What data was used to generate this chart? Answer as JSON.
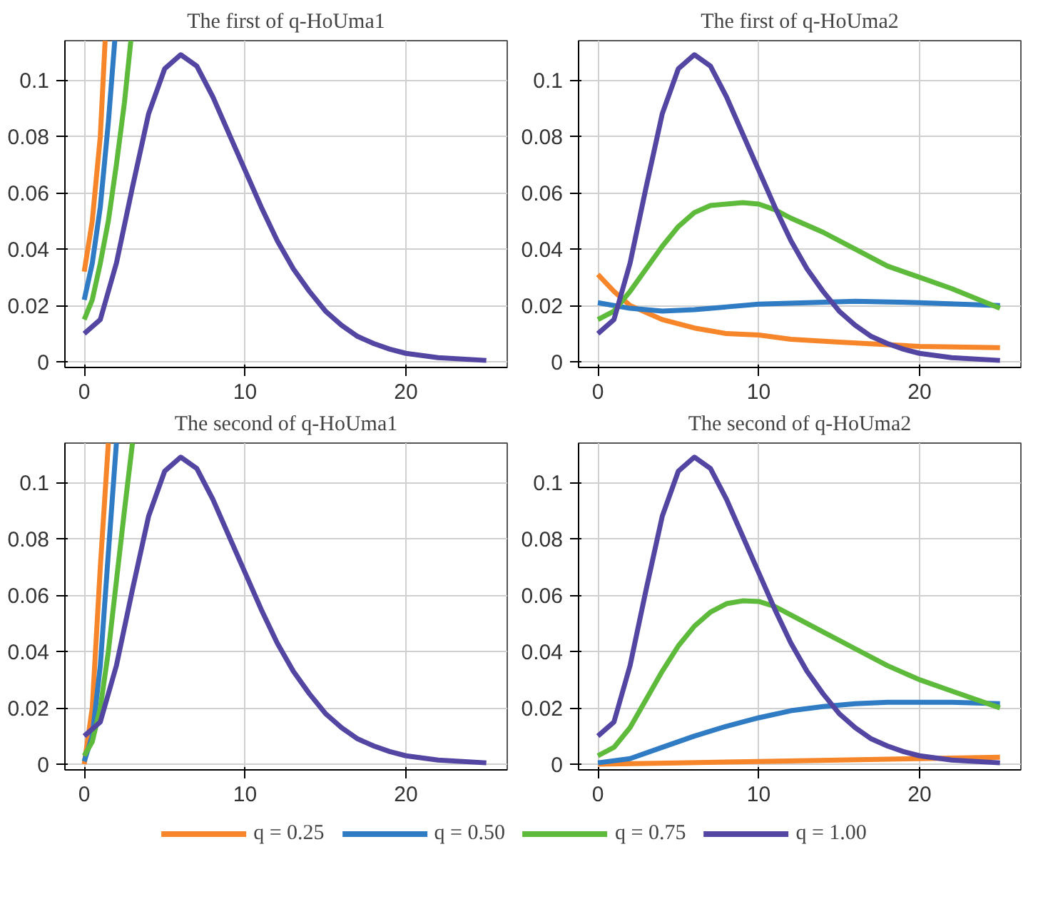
{
  "chart_data": [
    {
      "type": "line",
      "title": "The first of q-HoUma1",
      "xlim": [
        -1.2,
        26.3
      ],
      "ylim": [
        -0.002,
        0.114
      ],
      "xticks": [
        0,
        10,
        20
      ],
      "yticks": [
        0,
        {
          "value": 0.02,
          "label": "0.02"
        },
        {
          "value": 0.04,
          "label": "0.04"
        },
        {
          "value": 0.06,
          "label": "0.06"
        },
        {
          "value": 0.08,
          "label": "0.08"
        },
        0.1
      ],
      "grid": true,
      "series": [
        {
          "color": "#f7862a",
          "x": [
            0,
            0.5,
            1,
            1.3
          ],
          "values": [
            0.032,
            0.05,
            0.08,
            0.114
          ]
        },
        {
          "color": "#2f7bc4",
          "x": [
            0,
            0.5,
            1,
            1.5,
            1.9
          ],
          "values": [
            0.022,
            0.035,
            0.055,
            0.085,
            0.114
          ]
        },
        {
          "color": "#5dba3b",
          "x": [
            0,
            0.5,
            1,
            1.5,
            2,
            2.5,
            2.9
          ],
          "values": [
            0.015,
            0.022,
            0.035,
            0.05,
            0.07,
            0.092,
            0.114
          ]
        },
        {
          "color": "#5346a3",
          "x": [
            0,
            1,
            2,
            3,
            4,
            5,
            6,
            7,
            8,
            9,
            10,
            11,
            12,
            13,
            14,
            15,
            16,
            17,
            18,
            19,
            20,
            22,
            25
          ],
          "values": [
            0.01,
            0.015,
            0.035,
            0.062,
            0.088,
            0.104,
            0.109,
            0.105,
            0.094,
            0.081,
            0.068,
            0.055,
            0.043,
            0.033,
            0.025,
            0.018,
            0.013,
            0.009,
            0.0065,
            0.0045,
            0.003,
            0.0015,
            0.0005
          ]
        }
      ]
    },
    {
      "type": "line",
      "title": "The first of q-HoUma2",
      "xlim": [
        -1.2,
        26.3
      ],
      "ylim": [
        -0.002,
        0.114
      ],
      "xticks": [
        0,
        10,
        20
      ],
      "yticks": [
        0,
        {
          "value": 0.02,
          "label": "0.02"
        },
        {
          "value": 0.04,
          "label": "0.04"
        },
        {
          "value": 0.06,
          "label": "0.06"
        },
        {
          "value": 0.08,
          "label": "0.08"
        },
        0.1
      ],
      "grid": true,
      "series": [
        {
          "color": "#f7862a",
          "x": [
            0,
            1,
            2,
            4,
            6,
            8,
            10,
            12,
            15,
            20,
            25
          ],
          "values": [
            0.031,
            0.025,
            0.02,
            0.015,
            0.012,
            0.01,
            0.0095,
            0.008,
            0.007,
            0.0055,
            0.005
          ]
        },
        {
          "color": "#2f7bc4",
          "x": [
            0,
            2,
            4,
            6,
            8,
            10,
            13,
            16,
            20,
            25
          ],
          "values": [
            0.021,
            0.019,
            0.018,
            0.0185,
            0.0195,
            0.0205,
            0.021,
            0.0215,
            0.021,
            0.02
          ]
        },
        {
          "color": "#5dba3b",
          "x": [
            0,
            1,
            2,
            3,
            4,
            5,
            6,
            7,
            8,
            9,
            10,
            11,
            12,
            14,
            16,
            18,
            20,
            22,
            25
          ],
          "values": [
            0.015,
            0.018,
            0.025,
            0.033,
            0.041,
            0.048,
            0.053,
            0.0555,
            0.056,
            0.0565,
            0.056,
            0.054,
            0.051,
            0.046,
            0.04,
            0.034,
            0.03,
            0.026,
            0.019
          ]
        },
        {
          "color": "#5346a3",
          "x": [
            0,
            1,
            2,
            3,
            4,
            5,
            6,
            7,
            8,
            9,
            10,
            11,
            12,
            13,
            14,
            15,
            16,
            17,
            18,
            19,
            20,
            22,
            25
          ],
          "values": [
            0.01,
            0.015,
            0.035,
            0.062,
            0.088,
            0.104,
            0.109,
            0.105,
            0.094,
            0.081,
            0.068,
            0.055,
            0.043,
            0.033,
            0.025,
            0.018,
            0.013,
            0.009,
            0.0065,
            0.0045,
            0.003,
            0.0015,
            0.0005
          ]
        }
      ]
    },
    {
      "type": "line",
      "title": "The second of q-HoUma1",
      "xlim": [
        -1.2,
        26.3
      ],
      "ylim": [
        -0.002,
        0.114
      ],
      "xticks": [
        0,
        10,
        20
      ],
      "yticks": [
        0,
        {
          "value": 0.02,
          "label": "0.02"
        },
        {
          "value": 0.04,
          "label": "0.04"
        },
        {
          "value": 0.06,
          "label": "0.06"
        },
        {
          "value": 0.08,
          "label": "0.08"
        },
        0.1
      ],
      "grid": true,
      "series": [
        {
          "color": "#f7862a",
          "x": [
            0,
            0.5,
            1,
            1.5
          ],
          "values": [
            0,
            0.02,
            0.07,
            0.114
          ]
        },
        {
          "color": "#2f7bc4",
          "x": [
            0,
            0.5,
            1,
            1.5,
            2
          ],
          "values": [
            0.001,
            0.01,
            0.035,
            0.075,
            0.114
          ]
        },
        {
          "color": "#5dba3b",
          "x": [
            0,
            0.5,
            1,
            1.5,
            2,
            2.5,
            3
          ],
          "values": [
            0.003,
            0.008,
            0.02,
            0.04,
            0.065,
            0.09,
            0.114
          ]
        },
        {
          "color": "#5346a3",
          "x": [
            0,
            1,
            2,
            3,
            4,
            5,
            6,
            7,
            8,
            9,
            10,
            11,
            12,
            13,
            14,
            15,
            16,
            17,
            18,
            19,
            20,
            22,
            25
          ],
          "values": [
            0.01,
            0.015,
            0.035,
            0.062,
            0.088,
            0.104,
            0.109,
            0.105,
            0.094,
            0.081,
            0.068,
            0.055,
            0.043,
            0.033,
            0.025,
            0.018,
            0.013,
            0.009,
            0.0065,
            0.0045,
            0.003,
            0.0015,
            0.0005
          ]
        }
      ]
    },
    {
      "type": "line",
      "title": "The second of q-HoUma2",
      "xlim": [
        -1.2,
        26.3
      ],
      "ylim": [
        -0.002,
        0.114
      ],
      "xticks": [
        0,
        10,
        20
      ],
      "yticks": [
        0,
        {
          "value": 0.02,
          "label": "0.02"
        },
        {
          "value": 0.04,
          "label": "0.04"
        },
        {
          "value": 0.06,
          "label": "0.06"
        },
        {
          "value": 0.08,
          "label": "0.08"
        },
        0.1
      ],
      "grid": true,
      "legend": "bottom",
      "series": [
        {
          "name": "q = 0.25",
          "color": "#f7862a",
          "x": [
            0,
            5,
            10,
            15,
            20,
            25
          ],
          "values": [
            0,
            0.0005,
            0.001,
            0.0015,
            0.002,
            0.0025
          ]
        },
        {
          "name": "q = 0.50",
          "color": "#2f7bc4",
          "x": [
            0,
            2,
            4,
            6,
            8,
            10,
            12,
            14,
            16,
            18,
            20,
            22,
            25
          ],
          "values": [
            0.0005,
            0.002,
            0.006,
            0.01,
            0.0135,
            0.0165,
            0.019,
            0.0205,
            0.0215,
            0.022,
            0.022,
            0.022,
            0.0215
          ]
        },
        {
          "name": "q = 0.75",
          "color": "#5dba3b",
          "x": [
            0,
            1,
            2,
            3,
            4,
            5,
            6,
            7,
            8,
            9,
            10,
            11,
            12,
            14,
            16,
            18,
            20,
            22,
            25
          ],
          "values": [
            0.003,
            0.006,
            0.013,
            0.023,
            0.033,
            0.042,
            0.049,
            0.054,
            0.057,
            0.058,
            0.0578,
            0.056,
            0.053,
            0.047,
            0.041,
            0.035,
            0.03,
            0.026,
            0.02
          ]
        },
        {
          "name": "q = 1.00",
          "color": "#5346a3",
          "x": [
            0,
            1,
            2,
            3,
            4,
            5,
            6,
            7,
            8,
            9,
            10,
            11,
            12,
            13,
            14,
            15,
            16,
            17,
            18,
            19,
            20,
            22,
            25
          ],
          "values": [
            0.01,
            0.015,
            0.035,
            0.062,
            0.088,
            0.104,
            0.109,
            0.105,
            0.094,
            0.081,
            0.068,
            0.055,
            0.043,
            0.033,
            0.025,
            0.018,
            0.013,
            0.009,
            0.0065,
            0.0045,
            0.003,
            0.0015,
            0.0005
          ]
        }
      ]
    }
  ]
}
